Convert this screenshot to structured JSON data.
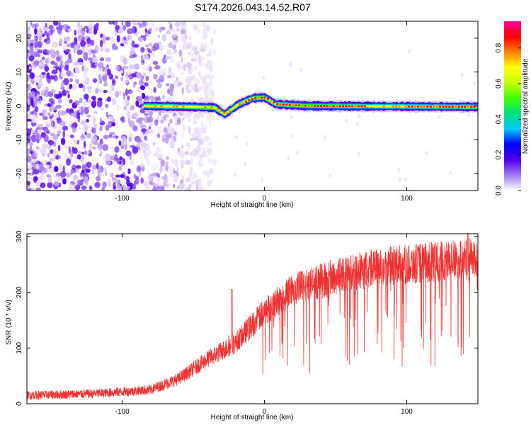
{
  "title": "S174.2026.043.14.52.R07",
  "chart_data": [
    {
      "type": "heatmap",
      "xlabel": "Height of straight line (km)",
      "ylabel": "Frequency (Hz)",
      "xlim": [
        -167,
        150
      ],
      "ylim": [
        -25,
        25
      ],
      "x_ticks": [
        -100,
        0,
        100
      ],
      "y_ticks": [
        -20,
        -10,
        0,
        10,
        20
      ],
      "ridge_frequency_hz": [
        {
          "x": -85,
          "y": 0
        },
        {
          "x": -50,
          "y": -0.3
        },
        {
          "x": -35,
          "y": -0.5
        },
        {
          "x": -28,
          "y": -2.5
        },
        {
          "x": -18,
          "y": 0.5
        },
        {
          "x": -8,
          "y": 2.3
        },
        {
          "x": 0,
          "y": 2.5
        },
        {
          "x": 8,
          "y": 0.5
        },
        {
          "x": 30,
          "y": 0
        },
        {
          "x": 150,
          "y": -0.3
        }
      ],
      "noise_region_x_range": [
        -167,
        -60
      ],
      "colorbar": {
        "label": "Normalized spectral amplitude",
        "range": [
          0,
          1
        ],
        "ticks": [
          "0.0",
          "0.2",
          "0.4",
          "0.6",
          "0.8"
        ],
        "colors": [
          "#ffffff",
          "#a27bf0",
          "#5200f0",
          "#0000ff",
          "#00c8ff",
          "#00e080",
          "#40ff00",
          "#c8ff00",
          "#ffff00",
          "#ff8000",
          "#ff0000",
          "#ff00a0"
        ]
      }
    },
    {
      "type": "line",
      "xlabel": "Height of straight line (km)",
      "ylabel": "SNR (10 * v/v)",
      "xlim": [
        -167,
        150
      ],
      "ylim": [
        0,
        305
      ],
      "x_ticks": [
        -100,
        0,
        100
      ],
      "y_ticks": [
        0,
        100,
        200,
        300
      ],
      "color": "#ee3333",
      "series_trend": [
        {
          "x": -167,
          "y": 15
        },
        {
          "x": -120,
          "y": 18
        },
        {
          "x": -80,
          "y": 25
        },
        {
          "x": -60,
          "y": 45
        },
        {
          "x": -40,
          "y": 80
        },
        {
          "x": -20,
          "y": 110
        },
        {
          "x": 0,
          "y": 165
        },
        {
          "x": 20,
          "y": 205
        },
        {
          "x": 40,
          "y": 220
        },
        {
          "x": 60,
          "y": 235
        },
        {
          "x": 80,
          "y": 245
        },
        {
          "x": 100,
          "y": 250
        },
        {
          "x": 120,
          "y": 255
        },
        {
          "x": 150,
          "y": 262
        }
      ],
      "annotations": [
        {
          "x": -23,
          "y": 205,
          "text": "spike"
        },
        {
          "x": 143,
          "y": 305,
          "text": "spike"
        }
      ]
    }
  ]
}
